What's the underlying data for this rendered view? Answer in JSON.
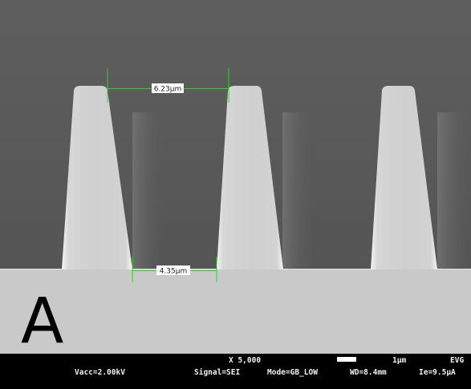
{
  "panel_label": "A",
  "measurements": [
    {
      "label": "6.23μm"
    },
    {
      "label": "4.35μm"
    }
  ],
  "info_bar": {
    "magnification": "X 5,000",
    "scale": "1μm",
    "vendor": "EVG",
    "vacc": "Vacc=2.00kV",
    "signal": "Signal=SEI",
    "mode": "Mode=GB_LOW",
    "wd": "WD=8.4mm",
    "ie": "Ie=9.5μA"
  }
}
